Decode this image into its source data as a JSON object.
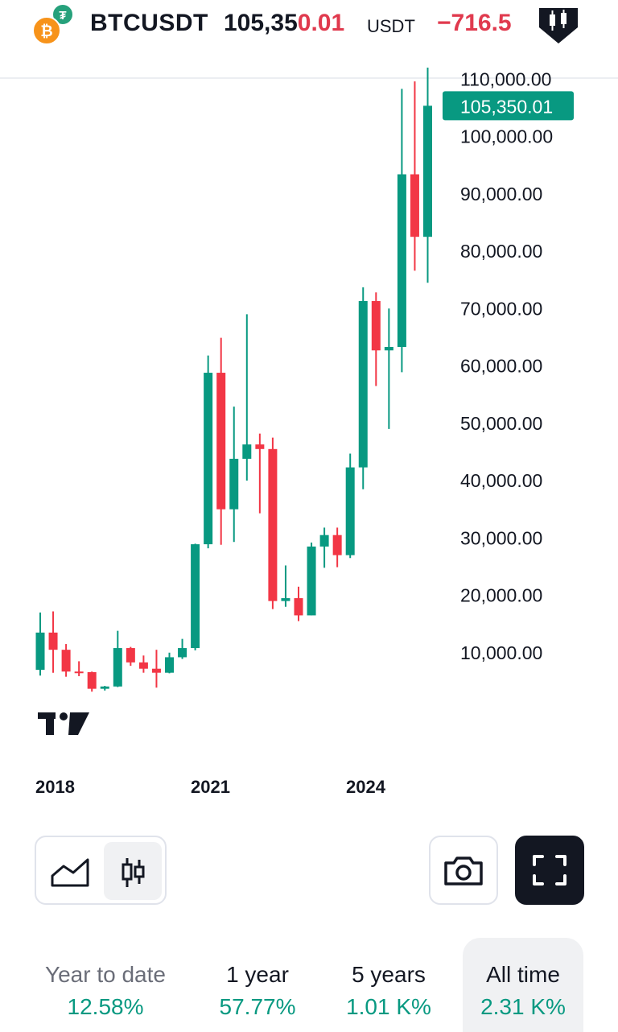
{
  "header": {
    "symbol": "BTCUSDT",
    "price_main": "105,35",
    "price_highlight": "0.01",
    "quote_currency": "USDT",
    "change": "−716.5",
    "base_icon": "bitcoin-icon",
    "quote_icon": "tether-icon",
    "chart_type_icon": "candles-badge-icon"
  },
  "colors": {
    "up": "#089981",
    "down": "#f23645",
    "text": "#131722"
  },
  "chart_data": {
    "type": "candlestick",
    "title": "",
    "interval": "quarterly",
    "price_axis": [
      "110,000.00",
      "100,000.00",
      "90,000.00",
      "80,000.00",
      "70,000.00",
      "60,000.00",
      "50,000.00",
      "40,000.00",
      "30,000.00",
      "20,000.00",
      "10,000.00"
    ],
    "last_price_label": "105,350.01",
    "last_price": 105350.01,
    "x_labels": [
      "2018",
      "2021",
      "2024"
    ],
    "ylim": [
      0,
      112000
    ],
    "candles": [
      {
        "o": 7000,
        "h": 17000,
        "l": 6000,
        "c": 13500
      },
      {
        "o": 13500,
        "h": 17200,
        "l": 6500,
        "c": 10500
      },
      {
        "o": 10500,
        "h": 11500,
        "l": 5800,
        "c": 6700
      },
      {
        "o": 6700,
        "h": 8500,
        "l": 5900,
        "c": 6600
      },
      {
        "o": 6600,
        "h": 6700,
        "l": 3200,
        "c": 3700
      },
      {
        "o": 3700,
        "h": 4200,
        "l": 3400,
        "c": 4100
      },
      {
        "o": 4100,
        "h": 13800,
        "l": 4000,
        "c": 10800
      },
      {
        "o": 10800,
        "h": 11000,
        "l": 7700,
        "c": 8300
      },
      {
        "o": 8300,
        "h": 9500,
        "l": 6500,
        "c": 7200
      },
      {
        "o": 7200,
        "h": 10500,
        "l": 3900,
        "c": 6500
      },
      {
        "o": 6500,
        "h": 10000,
        "l": 6400,
        "c": 9200
      },
      {
        "o": 9200,
        "h": 12400,
        "l": 8900,
        "c": 10800
      },
      {
        "o": 10800,
        "h": 29000,
        "l": 10400,
        "c": 28900
      },
      {
        "o": 28900,
        "h": 61800,
        "l": 28200,
        "c": 58800
      },
      {
        "o": 58800,
        "h": 64900,
        "l": 28800,
        "c": 35000
      },
      {
        "o": 35000,
        "h": 52900,
        "l": 29300,
        "c": 43800
      },
      {
        "o": 43800,
        "h": 69000,
        "l": 40000,
        "c": 46300
      },
      {
        "o": 46300,
        "h": 48200,
        "l": 34300,
        "c": 45500
      },
      {
        "o": 45500,
        "h": 47500,
        "l": 17600,
        "c": 19000
      },
      {
        "o": 19000,
        "h": 25200,
        "l": 18000,
        "c": 19500
      },
      {
        "o": 19500,
        "h": 21500,
        "l": 15500,
        "c": 16500
      },
      {
        "o": 16500,
        "h": 29200,
        "l": 16500,
        "c": 28500
      },
      {
        "o": 28500,
        "h": 31800,
        "l": 24800,
        "c": 30500
      },
      {
        "o": 30500,
        "h": 31800,
        "l": 24900,
        "c": 27000
      },
      {
        "o": 27000,
        "h": 44700,
        "l": 26500,
        "c": 42300
      },
      {
        "o": 42300,
        "h": 73700,
        "l": 38500,
        "c": 71300
      },
      {
        "o": 71300,
        "h": 72800,
        "l": 56500,
        "c": 62700
      },
      {
        "o": 62700,
        "h": 70000,
        "l": 49000,
        "c": 63300
      },
      {
        "o": 63300,
        "h": 108300,
        "l": 58900,
        "c": 93400
      },
      {
        "o": 93400,
        "h": 109600,
        "l": 76600,
        "c": 82500
      },
      {
        "o": 82500,
        "h": 112000,
        "l": 74500,
        "c": 105350.01
      }
    ]
  },
  "controls": {
    "line_style_icon": "area-chart-icon",
    "candle_style_icon": "candlestick-icon",
    "camera_icon": "camera-icon",
    "fullscreen_icon": "fullscreen-icon"
  },
  "periods": [
    {
      "label": "Year to date",
      "value": "12.58%"
    },
    {
      "label": "1 year",
      "value": "57.77%"
    },
    {
      "label": "5 years",
      "value": "1.01 K%"
    },
    {
      "label": "All time",
      "value": "2.31 K%"
    }
  ],
  "logo": "tradingview-logo"
}
